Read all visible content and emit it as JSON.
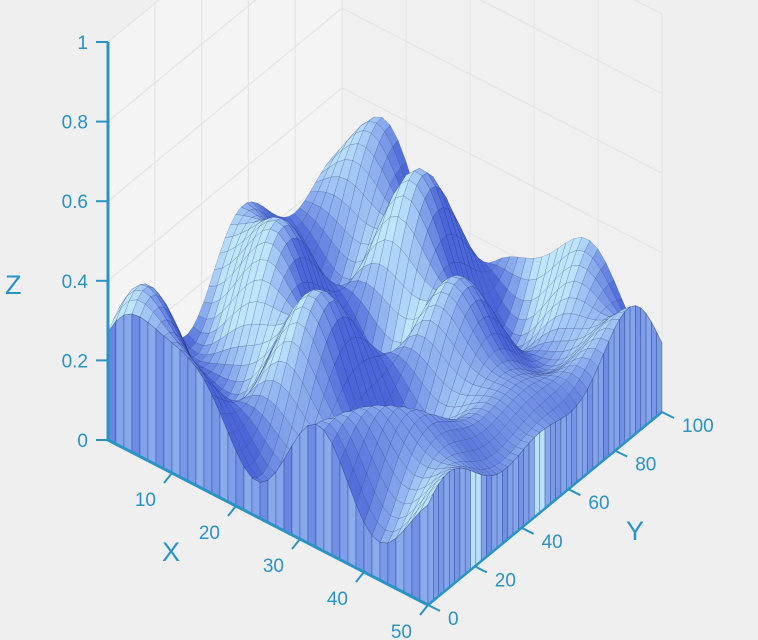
{
  "chart_data": {
    "type": "surface3d",
    "title": "",
    "xlabel": "X",
    "ylabel": "Y",
    "zlabel": "Z",
    "xlim": [
      0,
      50
    ],
    "ylim": [
      0,
      100
    ],
    "zlim": [
      0,
      1
    ],
    "x_ticks": [
      "10",
      "20",
      "30",
      "40",
      "50"
    ],
    "y_ticks": [
      "0",
      "20",
      "40",
      "60",
      "80",
      "100"
    ],
    "z_ticks": [
      "0",
      "0.2",
      "0.4",
      "0.6",
      "0.8",
      "1"
    ],
    "grid": true,
    "colors": {
      "axis": "#2a93c6",
      "surface_low": "#4a66d8",
      "surface_high": "#bfe6ff",
      "background": "#efefef",
      "pane": "#f4f4f4"
    }
  }
}
